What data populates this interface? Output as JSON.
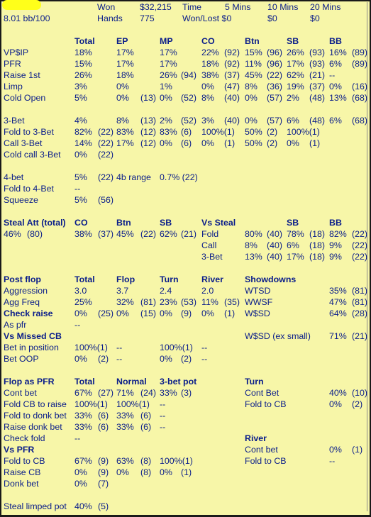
{
  "colors": {
    "background": "#f7f6a8",
    "text": "#0a1d8a",
    "name_highlight": "#ffff1a"
  },
  "header": {
    "won_label": "Won",
    "won_value": "$32,215",
    "time_label": "Time",
    "mins_5": "5 Mins",
    "mins_10": "10 Mins",
    "mins_20": "20 Mins",
    "bb_per_100": "8.01 bb/100",
    "hands_label": "Hands",
    "hands_value": "775",
    "wonlost_label": "Won/Lost $0",
    "wonlost_10": "$0",
    "wonlost_20": "$0"
  },
  "preflop": {
    "cols": [
      "Total",
      "EP",
      "MP",
      "CO",
      "Btn",
      "SB",
      "BB"
    ],
    "rows": [
      {
        "label": "VP$IP",
        "cells": [
          "18%",
          "",
          "17%",
          "",
          "17%",
          "",
          "22%",
          "(92)",
          "15%",
          "(96)",
          "26%",
          "(93)",
          "16%",
          "(89)"
        ]
      },
      {
        "label": "PFR",
        "cells": [
          "15%",
          "",
          "17%",
          "",
          "17%",
          "",
          "18%",
          "(92)",
          "11%",
          "(96)",
          "17%",
          "(93)",
          "6%",
          "(89)"
        ]
      },
      {
        "label": "Raise 1st",
        "cells": [
          "26%",
          "",
          "18%",
          "",
          "26%",
          "(94)",
          "38%",
          "(37)",
          "45%",
          "(22)",
          "62%",
          "(21)",
          "--",
          ""
        ]
      },
      {
        "label": "Limp",
        "cells": [
          "3%",
          "",
          "0%",
          "",
          "1%",
          "",
          "0%",
          "(47)",
          "8%",
          "(36)",
          "19%",
          "(37)",
          "0%",
          "(16)"
        ]
      },
      {
        "label": "Cold Open",
        "cells": [
          "5%",
          "",
          "0%",
          "(13)",
          "0%",
          "(52)",
          "8%",
          "(40)",
          "0%",
          "(57)",
          "2%",
          "(48)",
          "13%",
          "(68)"
        ]
      }
    ]
  },
  "threebet": {
    "rows": [
      {
        "label": "3-Bet",
        "cells": [
          "4%",
          "",
          "8%",
          "(13)",
          "2%",
          "(52)",
          "3%",
          "(40)",
          "0%",
          "(57)",
          "6%",
          "(48)",
          "6%",
          "(68)"
        ]
      },
      {
        "label": "Fold to 3-Bet",
        "cells": [
          "82%",
          "(22)",
          "83%",
          "(12)",
          "83%",
          "(6)",
          "100%(1)",
          "",
          "50%",
          "(2)",
          "100%(1)",
          "",
          "",
          ""
        ]
      },
      {
        "label": "Call 3-Bet",
        "cells": [
          "14%",
          "(22)",
          "17%",
          "(12)",
          "0%",
          "(6)",
          "0%",
          "(1)",
          "50%",
          "(2)",
          "0%",
          "(1)",
          "",
          ""
        ]
      },
      {
        "label": "Cold call 3-Bet",
        "cells": [
          "0%",
          "(22)",
          "",
          "",
          "",
          "",
          "",
          "",
          "",
          "",
          "",
          "",
          "",
          ""
        ]
      }
    ]
  },
  "fourbet": {
    "rows": [
      {
        "label": "4-bet",
        "cells": [
          "5%",
          "(22)",
          "4b range",
          "",
          "0.7% (22)"
        ]
      },
      {
        "label": "Fold to 4-Bet",
        "cells": [
          "--",
          "",
          "",
          "",
          ""
        ]
      },
      {
        "label": "Squeeze",
        "cells": [
          "5%",
          "(56)",
          "",
          "",
          ""
        ]
      }
    ]
  },
  "steal": {
    "title": "Steal Att (total)",
    "total": "46%",
    "total_n": "(80)",
    "cols": [
      "CO",
      "Btn",
      "SB"
    ],
    "values": [
      "38%",
      "(37)",
      "45%",
      "(22)",
      "62%",
      "(21)"
    ],
    "vs_title": "Vs Steal",
    "vs_cols": [
      "SB",
      "BB"
    ],
    "vs_rows": [
      {
        "label": "Fold",
        "cells": [
          "80%",
          "(40)",
          "78%",
          "(18)",
          "82%",
          "(22)"
        ]
      },
      {
        "label": "Call",
        "cells": [
          "8%",
          "(40)",
          "6%",
          "(18)",
          "9%",
          "(22)"
        ]
      },
      {
        "label": "3-Bet",
        "cells": [
          "13%",
          "(40)",
          "17%",
          "(18)",
          "9%",
          "(22)"
        ]
      }
    ]
  },
  "postflop": {
    "title": "Post flop",
    "cols": [
      "Total",
      "Flop",
      "Turn",
      "River"
    ],
    "rows": [
      {
        "label": "Aggression",
        "bold": false,
        "cells": [
          "3.0",
          "",
          "3.7",
          "",
          "2.4",
          "",
          "2.0",
          ""
        ]
      },
      {
        "label": "Agg Freq",
        "bold": false,
        "cells": [
          "25%",
          "",
          "32%",
          "(81)",
          "23%",
          "(53)",
          "11%",
          "(35)"
        ]
      },
      {
        "label": "Check raise",
        "bold": true,
        "cells": [
          "0%",
          "(25)",
          "0%",
          "(15)",
          "0%",
          "(9)",
          "0%",
          "(1)"
        ]
      },
      {
        "label": "As pfr",
        "bold": false,
        "cells": [
          "--",
          "",
          "",
          "",
          "",
          "",
          "",
          ""
        ]
      },
      {
        "label": "Vs Missed CB",
        "bold": true,
        "cells": [
          "",
          "",
          "",
          "",
          "",
          "",
          "",
          ""
        ]
      },
      {
        "label": "Bet in position",
        "bold": false,
        "cells": [
          "100%(1)",
          "",
          "--",
          "",
          "100%(1)",
          "",
          "--",
          ""
        ]
      },
      {
        "label": "Bet OOP",
        "bold": false,
        "cells": [
          "0%",
          "(2)",
          "--",
          "",
          "0%",
          "(2)",
          "--",
          ""
        ]
      }
    ],
    "showdowns": {
      "title": "Showdowns",
      "rows": [
        {
          "label": "WTSD",
          "value": "35%",
          "n": "(81)"
        },
        {
          "label": "WWSF",
          "value": "47%",
          "n": "(81)"
        },
        {
          "label": "W$SD",
          "value": "64%",
          "n": "(28)"
        },
        {
          "label": "",
          "value": "",
          "n": ""
        },
        {
          "label": "W$SD (ex small)",
          "value": "71%",
          "n": "(21)"
        }
      ]
    }
  },
  "pfr_section": {
    "title": "Flop as PFR",
    "cols": [
      "Total",
      "Normal",
      "3-bet pot"
    ],
    "rows": [
      {
        "label": "Cont bet",
        "bold": false,
        "cells": [
          "67%",
          "(27)",
          "71%",
          "(24)",
          "33%",
          "(3)"
        ]
      },
      {
        "label": "Fold CB to raise",
        "bold": false,
        "cells": [
          "100%(1)",
          "",
          "100%(1)",
          "",
          "--",
          ""
        ]
      },
      {
        "label": "Fold to donk bet",
        "bold": false,
        "cells": [
          "33%",
          "(6)",
          "33%",
          "(6)",
          "--",
          ""
        ]
      },
      {
        "label": "Raise donk bet",
        "bold": false,
        "cells": [
          "33%",
          "(6)",
          "33%",
          "(6)",
          "--",
          ""
        ]
      },
      {
        "label": "Check fold",
        "bold": false,
        "cells": [
          "--",
          "",
          "",
          "",
          "",
          ""
        ]
      },
      {
        "label": "Vs PFR",
        "bold": true,
        "cells": [
          "",
          "",
          "",
          "",
          "",
          ""
        ]
      },
      {
        "label": "Fold to CB",
        "bold": false,
        "cells": [
          "67%",
          "(9)",
          "63%",
          "(8)",
          "100%(1)",
          ""
        ]
      },
      {
        "label": "Raise CB",
        "bold": false,
        "cells": [
          "0%",
          "(9)",
          "0%",
          "(8)",
          "0%",
          "(1)"
        ]
      },
      {
        "label": "Donk bet",
        "bold": false,
        "cells": [
          "0%",
          "(7)",
          "",
          "",
          "",
          ""
        ]
      }
    ],
    "turn": {
      "title": "Turn",
      "rows": [
        {
          "label": "Cont Bet",
          "value": "40%",
          "n": "(10)"
        },
        {
          "label": "Fold to CB",
          "value": "0%",
          "n": "(2)"
        }
      ]
    },
    "river": {
      "title": "River",
      "rows": [
        {
          "label": "Cont bet",
          "value": "0%",
          "n": "(1)"
        },
        {
          "label": "Fold to CB",
          "value": "--",
          "n": ""
        }
      ]
    }
  },
  "steal_limped": {
    "label": "Steal limped pot",
    "value": "40%",
    "n": "(5)"
  }
}
